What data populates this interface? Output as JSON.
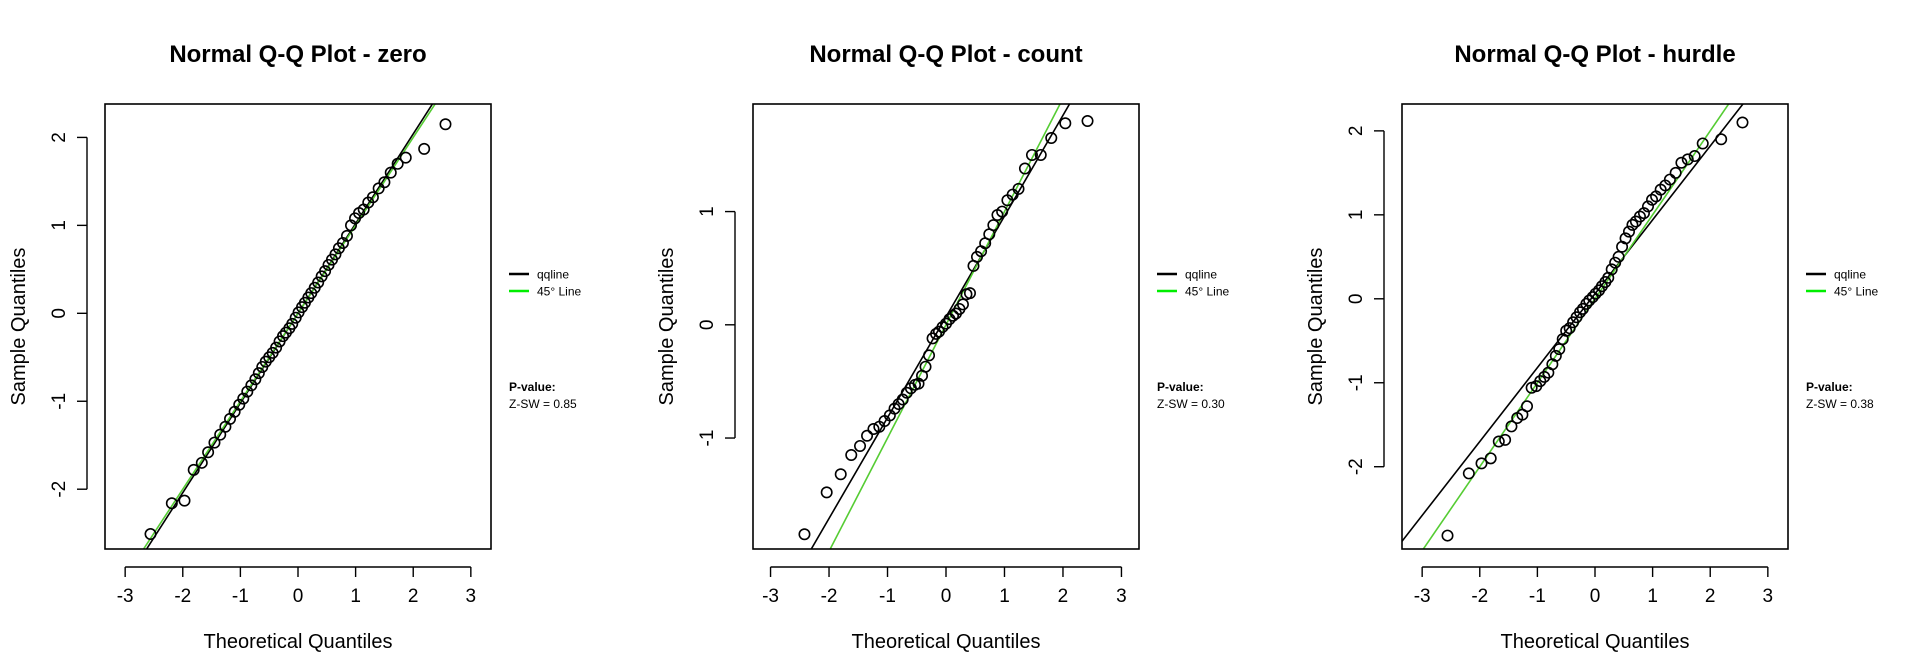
{
  "chart_data": [
    {
      "type": "scatter",
      "title": "Normal Q-Q Plot - zero",
      "xlabel": "Theoretical Quantiles",
      "ylabel": "Sample Quantiles",
      "xlim": [
        -3.35,
        3.35
      ],
      "ylim": [
        -2.68,
        2.38
      ],
      "xticks": [
        -3,
        -2,
        -1,
        0,
        1,
        2,
        3
      ],
      "yticks": [
        -2,
        -1,
        0,
        1,
        2
      ],
      "grid": false,
      "legend_position": "right",
      "legend": [
        {
          "label": "qqline",
          "color": "#000000"
        },
        {
          "label": "45° Line",
          "color": "#00ee00"
        }
      ],
      "lines": [
        {
          "name": "qqline",
          "color": "#000000",
          "intercept": 0.0,
          "slope": 1.02
        },
        {
          "name": "45° Line",
          "color": "#55cc33",
          "intercept": 0.0,
          "slope": 1.0
        }
      ],
      "annotation": {
        "heading": "P-value:",
        "text": "Z-SW = 0.85"
      },
      "points": {
        "x": [
          -2.56,
          -2.19,
          -1.97,
          -1.81,
          -1.67,
          -1.56,
          -1.45,
          -1.35,
          -1.26,
          -1.18,
          -1.1,
          -1.02,
          -0.95,
          -0.88,
          -0.81,
          -0.74,
          -0.68,
          -0.62,
          -0.56,
          -0.5,
          -0.44,
          -0.38,
          -0.32,
          -0.26,
          -0.21,
          -0.15,
          -0.1,
          -0.04,
          0.01,
          0.07,
          0.12,
          0.18,
          0.23,
          0.29,
          0.35,
          0.41,
          0.47,
          0.53,
          0.59,
          0.65,
          0.71,
          0.78,
          0.85,
          0.92,
          0.99,
          1.06,
          1.14,
          1.22,
          1.3,
          1.4,
          1.5,
          1.61,
          1.73,
          1.87,
          2.19,
          2.56
        ],
        "y": [
          -2.51,
          -2.16,
          -2.13,
          -1.78,
          -1.7,
          -1.58,
          -1.47,
          -1.38,
          -1.29,
          -1.2,
          -1.12,
          -1.04,
          -0.97,
          -0.89,
          -0.82,
          -0.75,
          -0.68,
          -0.61,
          -0.55,
          -0.5,
          -0.45,
          -0.39,
          -0.32,
          -0.26,
          -0.22,
          -0.17,
          -0.12,
          -0.05,
          0.01,
          0.07,
          0.12,
          0.18,
          0.23,
          0.29,
          0.35,
          0.42,
          0.48,
          0.55,
          0.61,
          0.67,
          0.74,
          0.8,
          0.88,
          1.0,
          1.08,
          1.14,
          1.18,
          1.26,
          1.32,
          1.42,
          1.49,
          1.6,
          1.7,
          1.77,
          1.87,
          2.15
        ]
      }
    },
    {
      "type": "scatter",
      "title": "Normal Q-Q Plot - count",
      "xlabel": "Theoretical Quantiles",
      "ylabel": "Sample Quantiles",
      "xlim": [
        -3.3,
        3.3
      ],
      "ylim": [
        -1.98,
        1.95
      ],
      "xticks": [
        -3,
        -2,
        -1,
        0,
        1,
        2,
        3
      ],
      "yticks": [
        -1,
        0,
        1
      ],
      "grid": false,
      "legend_position": "right",
      "legend": [
        {
          "label": "qqline",
          "color": "#000000"
        },
        {
          "label": "45° Line",
          "color": "#00ee00"
        }
      ],
      "lines": [
        {
          "name": "qqline",
          "color": "#000000",
          "intercept": 0.07,
          "slope": 0.89
        },
        {
          "name": "45° Line",
          "color": "#55cc33",
          "intercept": 0.0,
          "slope": 1.0
        }
      ],
      "annotation": {
        "heading": "P-value:",
        "text": "Z-SW = 0.30"
      },
      "points": {
        "x": [
          -2.42,
          -2.04,
          -1.8,
          -1.62,
          -1.47,
          -1.35,
          -1.24,
          -1.14,
          -1.05,
          -0.96,
          -0.88,
          -0.81,
          -0.74,
          -0.67,
          -0.6,
          -0.53,
          -0.47,
          -0.41,
          -0.35,
          -0.29,
          -0.23,
          -0.17,
          -0.12,
          -0.06,
          0.0,
          0.06,
          0.12,
          0.17,
          0.23,
          0.29,
          0.35,
          0.41,
          0.47,
          0.53,
          0.6,
          0.67,
          0.74,
          0.81,
          0.88,
          0.96,
          1.05,
          1.14,
          1.24,
          1.35,
          1.47,
          1.62,
          1.8,
          2.04,
          2.42
        ],
        "y": [
          -1.85,
          -1.48,
          -1.32,
          -1.15,
          -1.07,
          -0.98,
          -0.92,
          -0.9,
          -0.85,
          -0.8,
          -0.74,
          -0.7,
          -0.66,
          -0.6,
          -0.56,
          -0.53,
          -0.52,
          -0.45,
          -0.37,
          -0.27,
          -0.12,
          -0.08,
          -0.06,
          -0.02,
          0.01,
          0.05,
          0.08,
          0.1,
          0.14,
          0.18,
          0.27,
          0.28,
          0.52,
          0.6,
          0.65,
          0.72,
          0.8,
          0.88,
          0.97,
          1.0,
          1.1,
          1.15,
          1.2,
          1.38,
          1.5,
          1.5,
          1.65,
          1.78,
          1.8
        ]
      }
    },
    {
      "type": "scatter",
      "title": "Normal Q-Q Plot - hurdle",
      "xlabel": "Theoretical Quantiles",
      "ylabel": "Sample Quantiles",
      "xlim": [
        -3.35,
        3.35
      ],
      "ylim": [
        -2.98,
        2.32
      ],
      "xticks": [
        -3,
        -2,
        -1,
        0,
        1,
        2,
        3
      ],
      "yticks": [
        -2,
        -1,
        0,
        1,
        2
      ],
      "grid": false,
      "legend_position": "right",
      "legend": [
        {
          "label": "qqline",
          "color": "#000000"
        },
        {
          "label": "45° Line",
          "color": "#00ee00"
        }
      ],
      "lines": [
        {
          "name": "qqline",
          "color": "#000000",
          "intercept": 0.06,
          "slope": 0.88
        },
        {
          "name": "45° Line",
          "color": "#55cc33",
          "intercept": 0.0,
          "slope": 1.0
        }
      ],
      "annotation": {
        "heading": "P-value:",
        "text": "Z-SW = 0.38"
      },
      "points": {
        "x": [
          -2.56,
          -2.19,
          -1.97,
          -1.81,
          -1.67,
          -1.56,
          -1.45,
          -1.35,
          -1.26,
          -1.18,
          -1.1,
          -1.02,
          -0.95,
          -0.88,
          -0.81,
          -0.74,
          -0.68,
          -0.62,
          -0.56,
          -0.5,
          -0.44,
          -0.38,
          -0.32,
          -0.26,
          -0.21,
          -0.15,
          -0.1,
          -0.04,
          0.01,
          0.07,
          0.12,
          0.18,
          0.23,
          0.29,
          0.35,
          0.41,
          0.47,
          0.53,
          0.59,
          0.65,
          0.71,
          0.78,
          0.85,
          0.92,
          0.99,
          1.06,
          1.14,
          1.22,
          1.3,
          1.4,
          1.5,
          1.61,
          1.73,
          1.87,
          2.19,
          2.56
        ],
        "y": [
          -2.82,
          -2.08,
          -1.96,
          -1.9,
          -1.7,
          -1.68,
          -1.52,
          -1.42,
          -1.38,
          -1.28,
          -1.06,
          -1.04,
          -0.98,
          -0.93,
          -0.88,
          -0.78,
          -0.68,
          -0.6,
          -0.48,
          -0.38,
          -0.35,
          -0.28,
          -0.22,
          -0.16,
          -0.12,
          -0.06,
          -0.02,
          0.02,
          0.06,
          0.1,
          0.15,
          0.2,
          0.25,
          0.35,
          0.43,
          0.5,
          0.62,
          0.72,
          0.8,
          0.88,
          0.92,
          0.98,
          1.02,
          1.1,
          1.18,
          1.22,
          1.3,
          1.35,
          1.42,
          1.5,
          1.62,
          1.66,
          1.7,
          1.85,
          1.9,
          2.1
        ]
      }
    }
  ]
}
